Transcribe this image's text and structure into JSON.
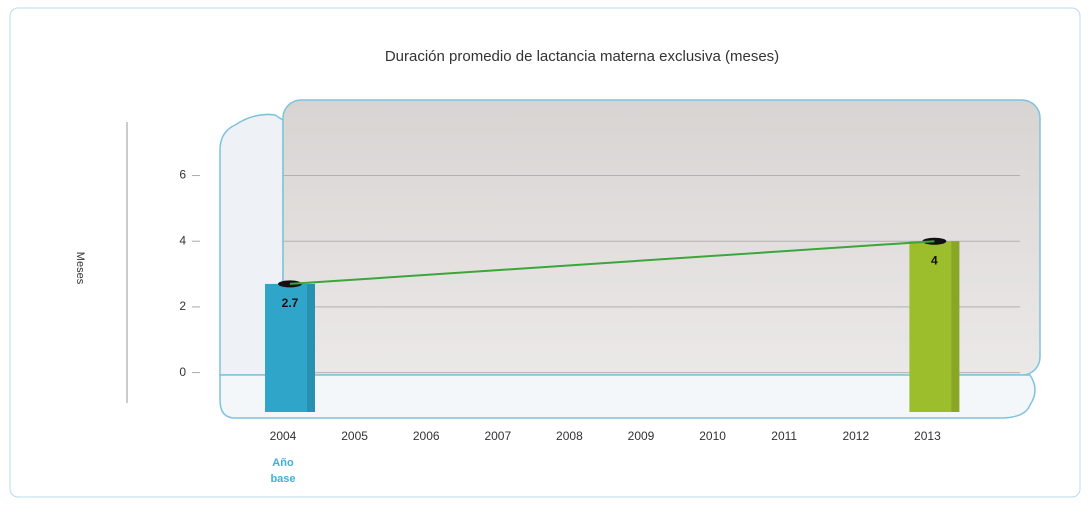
{
  "chart_data": {
    "type": "bar",
    "title": "Duración promedio de lactancia materna exclusiva (meses)",
    "y_label": "Meses",
    "categories": [
      "2004",
      "2005",
      "2006",
      "2007",
      "2008",
      "2009",
      "2010",
      "2011",
      "2012",
      "2013"
    ],
    "base_label": "Año base",
    "values": [
      2.7,
      null,
      null,
      null,
      null,
      null,
      null,
      null,
      null,
      4
    ],
    "colors": [
      "#2fa6c9",
      null,
      null,
      null,
      null,
      null,
      null,
      null,
      null,
      "#9cbd2c"
    ],
    "line_color": "#3ca63a",
    "ylim": [
      -1.2,
      8.3
    ],
    "yticks": [
      0,
      2,
      4,
      6
    ],
    "grid": true
  }
}
